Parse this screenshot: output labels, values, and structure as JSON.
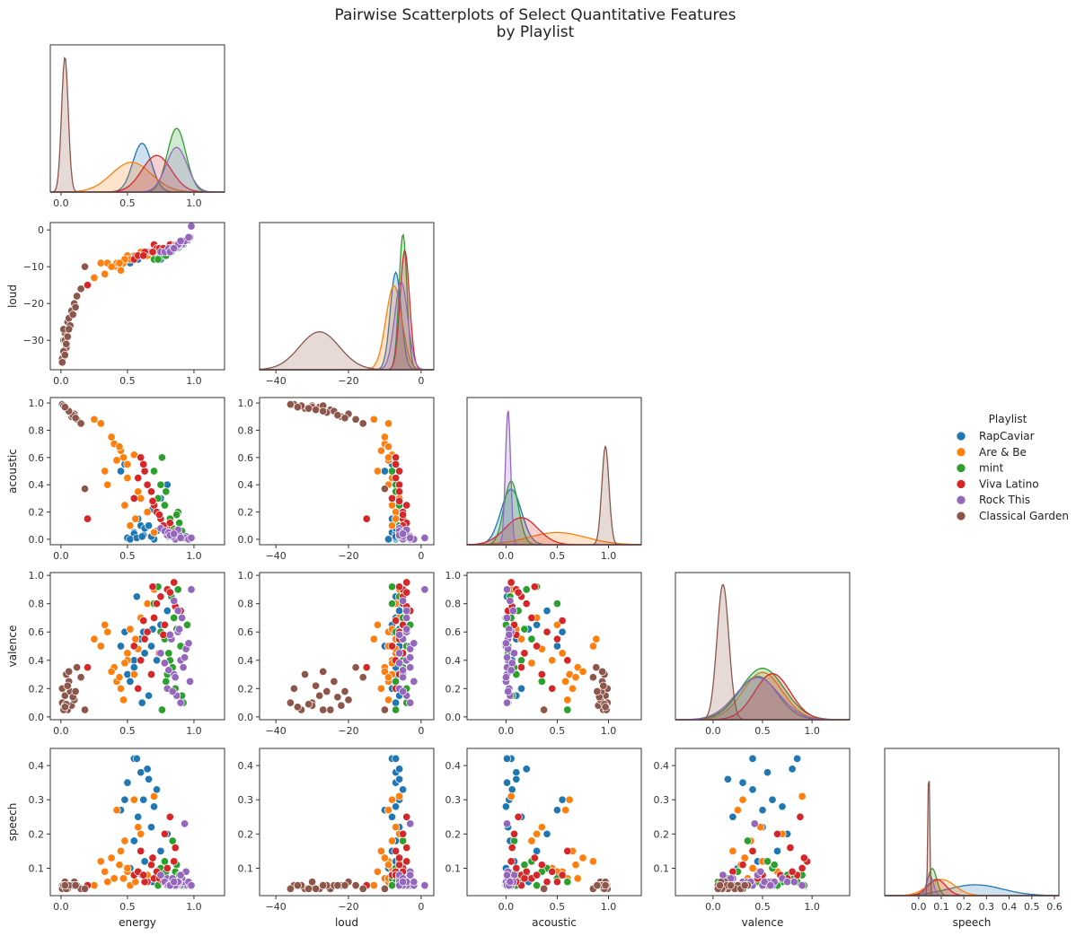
{
  "chart_data": {
    "type": "scatter",
    "title_line1": "Pairwise Scatterplots of Select Quantitative Features",
    "title_line2": "by Playlist",
    "variables": [
      "energy",
      "loud",
      "acoustic",
      "valence",
      "speech"
    ],
    "legend": {
      "title": "Playlist",
      "placement": "right",
      "entries": [
        "RapCaviar",
        "Are & Be",
        "mint",
        "Viva Latino",
        "Rock This",
        "Classical Garden"
      ]
    },
    "colors": {
      "RapCaviar": "#1f77b4",
      "Are & Be": "#ff7f0e",
      "mint": "#2ca02c",
      "Viva Latino": "#d62728",
      "Rock This": "#9467bd",
      "Classical Garden": "#8c564b"
    },
    "axes": {
      "energy": {
        "lim": [
          -0.08,
          1.23
        ],
        "ticks": [
          0,
          0.5,
          1.0
        ],
        "ticklabels": [
          "0.0",
          "0.5",
          "1.0"
        ]
      },
      "loud": {
        "lim": [
          -44.5,
          3.5
        ],
        "ticks": [
          -40,
          -20,
          0
        ],
        "ticklabels": [
          "−40",
          "−20",
          "0"
        ],
        "ylim": [
          -38,
          2
        ],
        "yticks": [
          0,
          -10,
          -20,
          -30
        ],
        "yticklabels": [
          "0",
          "−10",
          "−20",
          "−30"
        ]
      },
      "acoustic": {
        "lim": [
          -0.38,
          1.32
        ],
        "ticks": [
          0,
          0.5,
          1.0
        ],
        "ticklabels": [
          "0.0",
          "0.5",
          "1.0"
        ],
        "ylim": [
          -0.04,
          1.04
        ],
        "yticks": [
          0.0,
          0.2,
          0.4,
          0.6,
          0.8,
          1.0
        ],
        "yticklabels": [
          "0.0",
          "0.2",
          "0.4",
          "0.6",
          "0.8",
          "1.0"
        ]
      },
      "valence": {
        "lim": [
          -0.38,
          1.38
        ],
        "ticks": [
          0,
          0.5,
          1.0
        ],
        "ticklabels": [
          "0.0",
          "0.5",
          "1.0"
        ],
        "ylim": [
          -0.02,
          1.02
        ],
        "yticks": [
          0.0,
          0.2,
          0.4,
          0.6,
          0.8,
          1.0
        ],
        "yticklabels": [
          "0.0",
          "0.2",
          "0.4",
          "0.6",
          "0.8",
          "1.0"
        ]
      },
      "speech": {
        "lim": [
          -0.15,
          0.62
        ],
        "ticks": [
          0,
          0.1,
          0.2,
          0.3,
          0.4,
          0.5,
          0.6
        ],
        "ticklabels": [
          "0.0",
          "0.1",
          "0.2",
          "0.3",
          "0.4",
          "0.5",
          "0.6"
        ],
        "ylim": [
          0.02,
          0.45
        ],
        "yticks": [
          0.1,
          0.2,
          0.3,
          0.4
        ],
        "yticklabels": [
          "0.1",
          "0.2",
          "0.3",
          "0.4"
        ]
      }
    },
    "distributions": {
      "energy": [
        {
          "name": "RapCaviar",
          "mean": 0.61,
          "sd": 0.07,
          "peak": 0.36
        },
        {
          "name": "Are & Be",
          "mean": 0.53,
          "sd": 0.15,
          "peak": 0.22
        },
        {
          "name": "mint",
          "mean": 0.87,
          "sd": 0.07,
          "peak": 0.47
        },
        {
          "name": "Viva Latino",
          "mean": 0.72,
          "sd": 0.11,
          "peak": 0.27
        },
        {
          "name": "Rock This",
          "mean": 0.87,
          "sd": 0.08,
          "peak": 0.33
        },
        {
          "name": "Classical Garden",
          "mean": 0.03,
          "sd": 0.025,
          "peak": 1.0
        }
      ],
      "loud": [
        {
          "name": "RapCaviar",
          "mean": -7,
          "sd": 1.5,
          "peak": 0.72
        },
        {
          "name": "Are & Be",
          "mean": -7.5,
          "sd": 2.2,
          "peak": 0.62
        },
        {
          "name": "mint",
          "mean": -5,
          "sd": 1.1,
          "peak": 1.0
        },
        {
          "name": "Viva Latino",
          "mean": -4.5,
          "sd": 1.3,
          "peak": 0.88
        },
        {
          "name": "Rock This",
          "mean": -5.5,
          "sd": 1.8,
          "peak": 0.65
        },
        {
          "name": "Classical Garden",
          "mean": -28,
          "sd": 5.5,
          "peak": 0.28
        }
      ],
      "acoustic": [
        {
          "name": "RapCaviar",
          "mean": 0.05,
          "sd": 0.1,
          "peak": 0.41
        },
        {
          "name": "Are & Be",
          "mean": 0.5,
          "sd": 0.28,
          "peak": 0.09
        },
        {
          "name": "mint",
          "mean": 0.05,
          "sd": 0.07,
          "peak": 0.47
        },
        {
          "name": "Viva Latino",
          "mean": 0.15,
          "sd": 0.16,
          "peak": 0.2
        },
        {
          "name": "Rock This",
          "mean": 0.02,
          "sd": 0.025,
          "peak": 1.0
        },
        {
          "name": "Classical Garden",
          "mean": 0.97,
          "sd": 0.035,
          "peak": 0.73
        }
      ],
      "valence": [
        {
          "name": "RapCaviar",
          "mean": 0.45,
          "sd": 0.2,
          "peak": 0.32
        },
        {
          "name": "Are & Be",
          "mean": 0.5,
          "sd": 0.2,
          "peak": 0.35
        },
        {
          "name": "mint",
          "mean": 0.5,
          "sd": 0.22,
          "peak": 0.38
        },
        {
          "name": "Viva Latino",
          "mean": 0.6,
          "sd": 0.18,
          "peak": 0.34
        },
        {
          "name": "Rock This",
          "mean": 0.45,
          "sd": 0.22,
          "peak": 0.31
        },
        {
          "name": "Classical Garden",
          "mean": 0.1,
          "sd": 0.06,
          "peak": 1.0
        }
      ],
      "speech": [
        {
          "name": "RapCaviar",
          "mean": 0.25,
          "sd": 0.12,
          "peak": 0.08
        },
        {
          "name": "Are & Be",
          "mean": 0.1,
          "sd": 0.06,
          "peak": 0.12
        },
        {
          "name": "mint",
          "mean": 0.06,
          "sd": 0.02,
          "peak": 0.2
        },
        {
          "name": "Viva Latino",
          "mean": 0.08,
          "sd": 0.04,
          "peak": 0.12
        },
        {
          "name": "Rock This",
          "mean": 0.05,
          "sd": 0.015,
          "peak": 0.15
        },
        {
          "name": "Classical Garden",
          "mean": 0.045,
          "sd": 0.004,
          "peak": 1.0
        }
      ]
    },
    "points": {
      "RapCaviar": [
        [
          0.6,
          -7,
          0.1,
          0.55,
          0.38
        ],
        [
          0.55,
          -8,
          0.05,
          0.4,
          0.42
        ],
        [
          0.65,
          -6,
          0.2,
          0.8,
          0.39
        ],
        [
          0.5,
          -7,
          0.01,
          0.3,
          0.35
        ],
        [
          0.62,
          -6,
          0.03,
          0.6,
          0.3
        ],
        [
          0.7,
          -7,
          0.0,
          0.7,
          0.28
        ],
        [
          0.58,
          -8,
          0.15,
          0.2,
          0.25
        ],
        [
          0.68,
          -6,
          0.02,
          0.5,
          0.22
        ],
        [
          0.55,
          -7,
          0.04,
          0.35,
          0.18
        ],
        [
          0.75,
          -8,
          0.3,
          0.65,
          0.15
        ],
        [
          0.63,
          -7,
          0.08,
          0.45,
          0.12
        ],
        [
          0.52,
          -9,
          0.0,
          0.25,
          0.1
        ],
        [
          0.8,
          -6,
          0.4,
          0.75,
          0.2
        ],
        [
          0.48,
          -8,
          0.55,
          0.6,
          0.3
        ],
        [
          0.57,
          -7,
          0.01,
          0.85,
          0.42
        ],
        [
          0.66,
          -6,
          0.1,
          0.15,
          0.36
        ],
        [
          0.72,
          -5,
          0.06,
          0.4,
          0.33
        ],
        [
          0.45,
          -10,
          0.5,
          0.5,
          0.27
        ],
        [
          0.61,
          -7,
          0.02,
          0.1,
          0.08
        ],
        [
          0.69,
          -6,
          0.22,
          0.62,
          0.06
        ]
      ],
      "Are & Be": [
        [
          0.3,
          -9,
          0.85,
          0.5,
          0.12
        ],
        [
          0.4,
          -10,
          0.7,
          0.35,
          0.07
        ],
        [
          0.55,
          -8,
          0.62,
          0.3,
          0.3
        ],
        [
          0.5,
          -7,
          0.55,
          0.45,
          0.09
        ],
        [
          0.45,
          -11,
          0.65,
          0.2,
          0.15
        ],
        [
          0.35,
          -9,
          0.4,
          0.6,
          0.06
        ],
        [
          0.6,
          -6,
          0.3,
          0.7,
          0.2
        ],
        [
          0.25,
          -13,
          0.88,
          0.55,
          0.05
        ],
        [
          0.5,
          -8,
          0.45,
          0.4,
          0.1
        ],
        [
          0.65,
          -7,
          0.2,
          0.8,
          0.08
        ],
        [
          0.42,
          -9,
          0.58,
          0.25,
          0.27
        ],
        [
          0.38,
          -10,
          0.75,
          0.32,
          0.13
        ],
        [
          0.52,
          -8,
          0.1,
          0.62,
          0.05
        ],
        [
          0.58,
          -7,
          0.35,
          0.48,
          0.22
        ],
        [
          0.47,
          -9,
          0.6,
          0.12,
          0.07
        ],
        [
          0.33,
          -12,
          0.5,
          0.65,
          0.09
        ],
        [
          0.7,
          -6,
          0.05,
          0.9,
          0.31
        ],
        [
          0.48,
          -8,
          0.25,
          0.38,
          0.18
        ],
        [
          0.56,
          -7,
          0.15,
          0.55,
          0.06
        ],
        [
          0.44,
          -9,
          0.68,
          0.28,
          0.11
        ]
      ],
      "mint": [
        [
          0.85,
          -5,
          0.05,
          0.7,
          0.06
        ],
        [
          0.9,
          -4,
          0.02,
          0.5,
          0.07
        ],
        [
          0.8,
          -6,
          0.1,
          0.3,
          0.05
        ],
        [
          0.88,
          -5,
          0.2,
          0.9,
          0.08
        ],
        [
          0.75,
          -7,
          0.4,
          0.6,
          0.1
        ],
        [
          0.92,
          -4,
          0.01,
          0.1,
          0.05
        ],
        [
          0.82,
          -5,
          0.15,
          0.4,
          0.06
        ],
        [
          0.7,
          -8,
          0.5,
          0.8,
          0.07
        ],
        [
          0.86,
          -4,
          0.03,
          0.2,
          0.09
        ],
        [
          0.78,
          -6,
          0.25,
          0.55,
          0.12
        ],
        [
          0.95,
          -3,
          0.0,
          0.65,
          0.05
        ],
        [
          0.84,
          -5,
          0.08,
          0.35,
          0.18
        ],
        [
          0.76,
          -7,
          0.6,
          0.05,
          0.06
        ],
        [
          0.89,
          -4,
          0.12,
          0.75,
          0.08
        ],
        [
          0.81,
          -6,
          0.02,
          0.45,
          0.06
        ],
        [
          0.73,
          -8,
          0.3,
          0.92,
          0.05
        ],
        [
          0.91,
          -4,
          0.06,
          0.15,
          0.07
        ],
        [
          0.87,
          -5,
          0.18,
          0.62,
          0.11
        ],
        [
          0.83,
          -6,
          0.04,
          0.85,
          0.06
        ],
        [
          0.79,
          -7,
          0.35,
          0.25,
          0.09
        ]
      ],
      "Viva Latino": [
        [
          0.75,
          -5,
          0.15,
          0.85,
          0.08
        ],
        [
          0.7,
          -4,
          0.25,
          0.7,
          0.07
        ],
        [
          0.8,
          -5,
          0.1,
          0.9,
          0.1
        ],
        [
          0.65,
          -6,
          0.4,
          0.6,
          0.06
        ],
        [
          0.85,
          -4,
          0.05,
          0.95,
          0.12
        ],
        [
          0.6,
          -7,
          0.6,
          0.4,
          0.15
        ],
        [
          0.72,
          -5,
          0.2,
          0.8,
          0.09
        ],
        [
          0.55,
          -8,
          0.3,
          0.5,
          0.08
        ],
        [
          0.9,
          -3,
          0.02,
          0.75,
          0.07
        ],
        [
          0.68,
          -6,
          0.35,
          0.3,
          0.11
        ],
        [
          0.78,
          -5,
          0.08,
          0.65,
          0.2
        ],
        [
          0.63,
          -6,
          0.5,
          0.55,
          0.06
        ],
        [
          0.82,
          -4,
          0.12,
          0.88,
          0.25
        ],
        [
          0.58,
          -7,
          0.45,
          0.2,
          0.09
        ],
        [
          0.74,
          -5,
          0.18,
          0.45,
          0.07
        ],
        [
          0.69,
          -6,
          0.28,
          0.92,
          0.13
        ],
        [
          0.2,
          -15,
          0.15,
          0.35,
          0.05
        ],
        [
          0.86,
          -4,
          0.06,
          0.78,
          0.16
        ],
        [
          0.62,
          -7,
          0.55,
          0.68,
          0.08
        ],
        [
          0.77,
          -5,
          0.1,
          0.58,
          0.06
        ]
      ],
      "Rock This": [
        [
          0.9,
          -4,
          0.02,
          0.4,
          0.05
        ],
        [
          0.85,
          -5,
          0.01,
          0.3,
          0.06
        ],
        [
          0.95,
          -3,
          0.0,
          0.5,
          0.05
        ],
        [
          0.8,
          -6,
          0.03,
          0.2,
          0.07
        ],
        [
          0.88,
          -4,
          0.05,
          0.6,
          0.05
        ],
        [
          0.92,
          -3,
          0.01,
          0.35,
          0.06
        ],
        [
          0.75,
          -6,
          0.08,
          0.45,
          0.08
        ],
        [
          0.97,
          -2,
          0.0,
          0.25,
          0.05
        ],
        [
          0.83,
          -5,
          0.02,
          0.55,
          0.06
        ],
        [
          0.87,
          -4,
          0.04,
          0.15,
          0.05
        ],
        [
          0.91,
          -4,
          0.01,
          0.7,
          0.07
        ],
        [
          0.78,
          -6,
          0.06,
          0.38,
          0.06
        ],
        [
          0.94,
          -3,
          0.02,
          0.48,
          0.09
        ],
        [
          0.86,
          -5,
          0.0,
          0.28,
          0.05
        ],
        [
          0.89,
          -4,
          0.03,
          0.62,
          0.06
        ],
        [
          0.93,
          -3,
          0.01,
          0.42,
          0.23
        ],
        [
          0.81,
          -5,
          0.05,
          0.33,
          0.05
        ],
        [
          0.96,
          -2,
          0.0,
          0.52,
          0.06
        ],
        [
          0.84,
          -5,
          0.02,
          0.18,
          0.07
        ],
        [
          0.98,
          1,
          0.01,
          0.9,
          0.05
        ],
        [
          0.88,
          -4,
          0.07,
          0.75,
          0.06
        ],
        [
          0.82,
          -6,
          0.03,
          0.58,
          0.05
        ],
        [
          0.9,
          -3,
          0.01,
          0.1,
          0.08
        ],
        [
          0.85,
          -5,
          0.04,
          0.82,
          0.06
        ]
      ],
      "Classical Garden": [
        [
          0.02,
          -30,
          0.98,
          0.1,
          0.05
        ],
        [
          0.05,
          -25,
          0.95,
          0.05,
          0.04
        ],
        [
          0.01,
          -35,
          0.99,
          0.2,
          0.05
        ],
        [
          0.03,
          -28,
          0.97,
          0.15,
          0.04
        ],
        [
          0.08,
          -22,
          0.9,
          0.08,
          0.05
        ],
        [
          0.04,
          -32,
          0.96,
          0.3,
          0.04
        ],
        [
          0.1,
          -20,
          0.92,
          0.12,
          0.06
        ],
        [
          0.02,
          -27,
          0.98,
          0.05,
          0.05
        ],
        [
          0.06,
          -24,
          0.94,
          0.25,
          0.05
        ],
        [
          0.01,
          -36,
          0.99,
          0.1,
          0.04
        ],
        [
          0.07,
          -26,
          0.93,
          0.18,
          0.05
        ],
        [
          0.03,
          -30,
          0.97,
          0.08,
          0.06
        ],
        [
          0.12,
          -18,
          0.88,
          0.35,
          0.05
        ],
        [
          0.05,
          -29,
          0.95,
          0.22,
          0.04
        ],
        [
          0.02,
          -33,
          0.98,
          0.05,
          0.05
        ],
        [
          0.15,
          -16,
          0.85,
          0.28,
          0.04
        ],
        [
          0.09,
          -23,
          0.91,
          0.14,
          0.05
        ],
        [
          0.04,
          -31,
          0.96,
          0.09,
          0.04
        ],
        [
          0.06,
          -27,
          0.94,
          0.32,
          0.05
        ],
        [
          0.18,
          -10,
          0.37,
          0.05,
          0.04
        ],
        [
          0.11,
          -21,
          0.89,
          0.18,
          0.05
        ],
        [
          0.03,
          -34,
          0.97,
          0.07,
          0.05
        ]
      ]
    }
  }
}
